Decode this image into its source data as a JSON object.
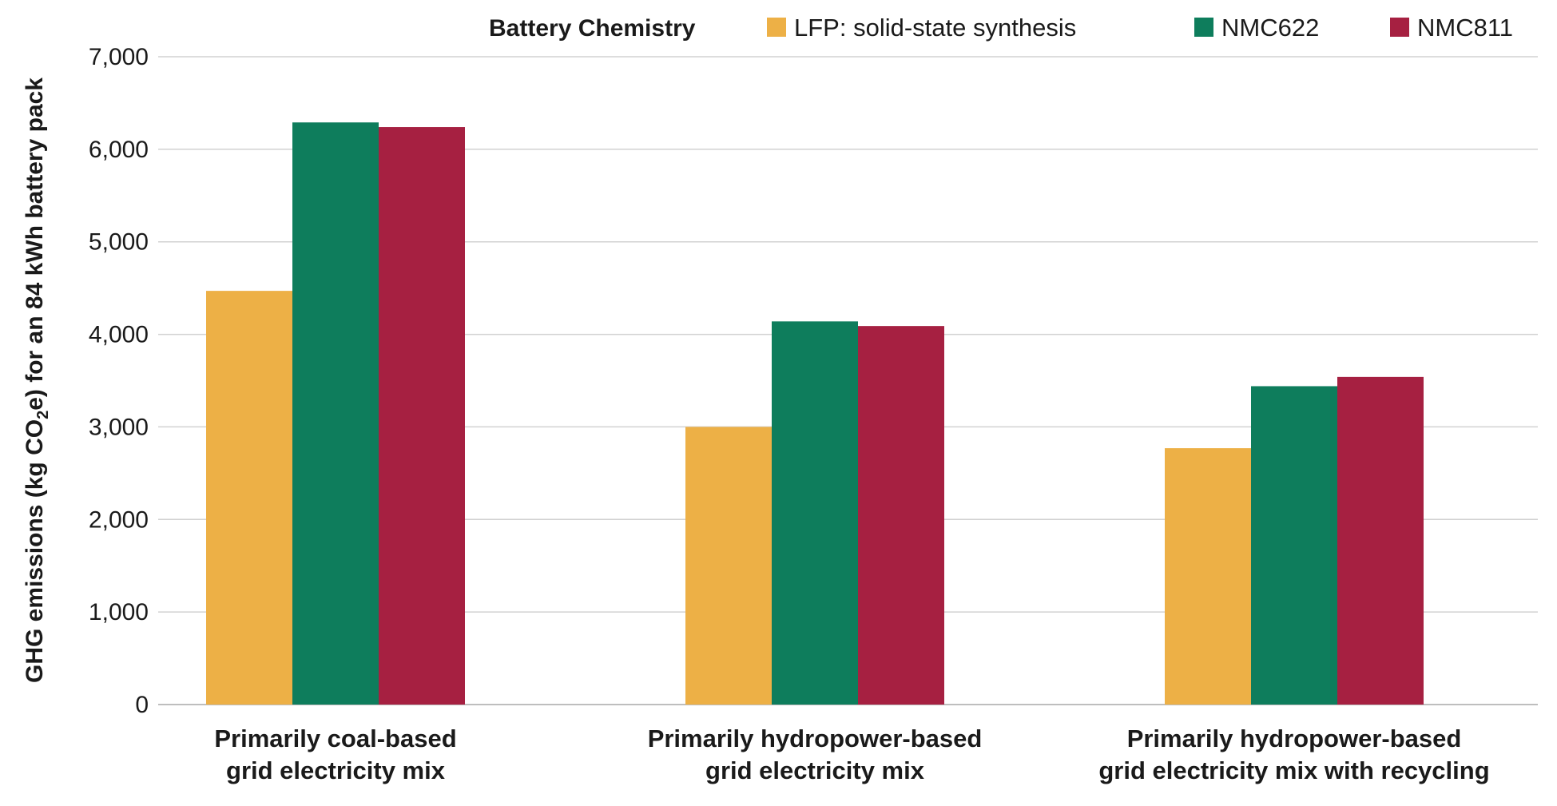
{
  "chart_data": {
    "type": "bar",
    "title": "",
    "xlabel": "",
    "ylabel": "GHG emissions (kg CO₂e) for an 84 kWh battery pack",
    "ylabel_parts": {
      "before": "GHG emissions (kg CO",
      "subscript": "2",
      "after": "e) for an 84 kWh battery pack"
    },
    "ylim": [
      0,
      7000
    ],
    "yticks": [
      0,
      1000,
      2000,
      3000,
      4000,
      5000,
      6000,
      7000
    ],
    "ytick_labels": [
      "0",
      "1,000",
      "2,000",
      "3,000",
      "4,000",
      "5,000",
      "6,000",
      "7,000"
    ],
    "grid": true,
    "legend": {
      "title": "Battery Chemistry",
      "placement": "top"
    },
    "categories": [
      [
        "Primarily coal-based",
        "grid electricity mix"
      ],
      [
        "Primarily hydropower-based",
        "grid electricity mix"
      ],
      [
        "Primarily hydropower-based",
        "grid electricity mix with recycling"
      ]
    ],
    "series": [
      {
        "name": "LFP: solid-state synthesis",
        "color": "#EDB046",
        "values": [
          4470,
          3000,
          2770
        ]
      },
      {
        "name": "NMC622",
        "color": "#0E7D5C",
        "values": [
          6290,
          4140,
          3440
        ]
      },
      {
        "name": "NMC811",
        "color": "#A62041",
        "values": [
          6240,
          4090,
          3540
        ]
      }
    ]
  }
}
